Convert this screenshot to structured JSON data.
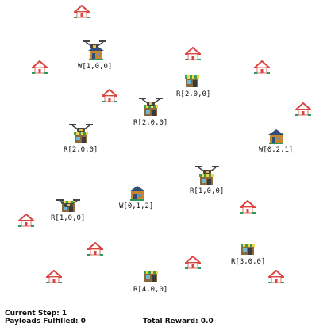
{
  "status": {
    "current_step_label": "Current Step:",
    "current_step_value": "1",
    "payloads_label": "Payloads Fulfilled:",
    "payloads_value": "0",
    "reward_label": "Total Reward:",
    "reward_value": "0.0"
  },
  "labels": {
    "w1": "W[1,0,0]",
    "w2": "W[0,2,1]",
    "w3": "W[0,1,2]",
    "r1": "R[2,0,0]",
    "r2": "R[2,0,0]",
    "r3": "R[2,0,0]",
    "r4": "R[1,0,0]",
    "r5": "R[1,0,0]",
    "r6": "R[3,0,0]",
    "r7": "R[4,0,0]"
  },
  "colors": {
    "house_roof": "#d9463f",
    "house_wall": "#ffffff",
    "grass": "#2e9a5a",
    "warehouse_wall": "#c9852e",
    "warehouse_roof": "#2f4f7a",
    "store_awning_yellow": "#f1d54a",
    "store_awning_green": "#3f9d4f",
    "drone_body": "#444444"
  },
  "icons": [
    "house-icon",
    "warehouse-icon",
    "retail-store-icon",
    "drone-icon"
  ]
}
